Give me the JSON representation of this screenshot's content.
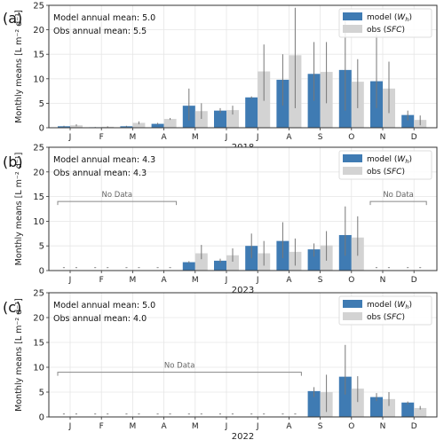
{
  "chart_data": [
    {
      "type": "bar",
      "panel_label": "(a)",
      "categories": [
        "J",
        "F",
        "M",
        "A",
        "M",
        "J",
        "J",
        "A",
        "S",
        "O",
        "N",
        "D"
      ],
      "xlabel": "2018",
      "ylabel": "Monthly means [L m⁻² d⁻¹]",
      "ylim": [
        0,
        25
      ],
      "yticks": [
        0,
        5,
        10,
        15,
        20,
        25
      ],
      "grid": true,
      "legend_position": "top-right",
      "annotations": [
        "Model annual mean: 5.0",
        "Obs annual mean:   5.5"
      ],
      "no_data_spans": [],
      "series": [
        {
          "name": "model (W_h)",
          "name_base": "model (",
          "name_sym": "W",
          "name_sub": "h",
          "name_tail": ")",
          "color": "#3f7bb3",
          "values": [
            0.3,
            0.1,
            0.3,
            0.8,
            4.5,
            3.5,
            6.2,
            9.8,
            11.0,
            11.8,
            9.5,
            2.6
          ],
          "err_low": [
            0.2,
            0.05,
            0.2,
            0.6,
            1.5,
            3.0,
            6.0,
            4.5,
            5.5,
            3.5,
            4.0,
            1.5
          ],
          "err_high": [
            0.4,
            0.15,
            0.4,
            1.0,
            8.0,
            4.0,
            6.4,
            15.0,
            17.5,
            22.5,
            19.0,
            3.5
          ]
        },
        {
          "name": "obs (SFC)",
          "name_base": "obs (",
          "name_sym": "SFC",
          "name_sub": "",
          "name_tail": ")",
          "color": "#d3d3d3",
          "values": [
            0.5,
            0.2,
            1.0,
            1.8,
            3.4,
            3.6,
            11.5,
            14.8,
            11.4,
            9.4,
            8.0,
            1.6
          ],
          "err_low": [
            0.3,
            0.1,
            0.7,
            1.6,
            1.8,
            2.7,
            5.5,
            4.0,
            5.0,
            4.0,
            3.0,
            0.5
          ],
          "err_high": [
            0.7,
            0.3,
            1.3,
            2.0,
            5.0,
            4.5,
            17.0,
            24.5,
            17.5,
            14.0,
            13.5,
            2.5
          ]
        }
      ]
    },
    {
      "type": "bar",
      "panel_label": "(b)",
      "categories": [
        "J",
        "F",
        "M",
        "A",
        "M",
        "J",
        "J",
        "A",
        "S",
        "O",
        "N",
        "D"
      ],
      "xlabel": "2023",
      "ylabel": "Monthly means [L m⁻² d⁻¹]",
      "ylim": [
        0,
        25
      ],
      "yticks": [
        0,
        5,
        10,
        15,
        20,
        25
      ],
      "grid": true,
      "legend_position": "top-right",
      "annotations": [
        "Model annual mean: 4.3",
        "Obs annual mean:   4.3"
      ],
      "no_data_spans": [
        {
          "label": "No Data",
          "from": 0,
          "to": 3,
          "y": 14
        },
        {
          "label": "No Data",
          "from": 10,
          "to": 11,
          "y": 14
        }
      ],
      "series": [
        {
          "name": "model (W_h)",
          "name_base": "model (",
          "name_sym": "W",
          "name_sub": "h",
          "name_tail": ")",
          "color": "#3f7bb3",
          "values": [
            null,
            null,
            null,
            null,
            1.7,
            2.0,
            5.0,
            6.0,
            4.3,
            7.2,
            null,
            null
          ],
          "err_low": [
            null,
            null,
            null,
            null,
            1.5,
            1.6,
            2.5,
            2.5,
            2.8,
            3.0,
            null,
            null
          ],
          "err_high": [
            null,
            null,
            null,
            null,
            1.9,
            2.4,
            7.5,
            9.8,
            5.5,
            13.0,
            null,
            null
          ]
        },
        {
          "name": "obs (SFC)",
          "name_base": "obs (",
          "name_sym": "SFC",
          "name_sub": "",
          "name_tail": ")",
          "color": "#d3d3d3",
          "values": [
            null,
            null,
            null,
            null,
            3.5,
            3.1,
            3.5,
            3.8,
            5.1,
            6.7,
            null,
            null
          ],
          "err_low": [
            null,
            null,
            null,
            null,
            2.3,
            1.8,
            1.0,
            1.0,
            2.0,
            3.0,
            null,
            null
          ],
          "err_high": [
            null,
            null,
            null,
            null,
            5.2,
            4.5,
            6.0,
            6.5,
            8.0,
            11.0,
            null,
            null
          ]
        }
      ]
    },
    {
      "type": "bar",
      "panel_label": "(c)",
      "categories": [
        "J",
        "F",
        "M",
        "A",
        "M",
        "J",
        "J",
        "A",
        "S",
        "O",
        "N",
        "D"
      ],
      "xlabel": "2022",
      "ylabel": "Monthly means [L m⁻² d⁻¹]",
      "ylim": [
        0,
        25
      ],
      "yticks": [
        0,
        5,
        10,
        15,
        20,
        25
      ],
      "grid": true,
      "legend_position": "top-right",
      "annotations": [
        "Model annual mean: 5.0",
        "Obs annual mean:    4.0"
      ],
      "no_data_spans": [
        {
          "label": "No Data",
          "from": 0,
          "to": 7,
          "y": 9
        }
      ],
      "series": [
        {
          "name": "model (W_h)",
          "name_base": "model (",
          "name_sym": "W",
          "name_sub": "h",
          "name_tail": ")",
          "color": "#3f7bb3",
          "values": [
            null,
            null,
            null,
            null,
            null,
            null,
            null,
            null,
            5.2,
            8.1,
            4.0,
            2.9
          ],
          "err_low": [
            null,
            null,
            null,
            null,
            null,
            null,
            null,
            null,
            4.0,
            4.5,
            3.2,
            2.5
          ],
          "err_high": [
            null,
            null,
            null,
            null,
            null,
            null,
            null,
            null,
            6.0,
            14.5,
            4.8,
            3.1
          ]
        },
        {
          "name": "obs (SFC)",
          "name_base": "obs (",
          "name_sym": "SFC",
          "name_sub": "",
          "name_tail": ")",
          "color": "#d3d3d3",
          "values": [
            null,
            null,
            null,
            null,
            null,
            null,
            null,
            null,
            5.0,
            5.7,
            3.6,
            1.8
          ],
          "err_low": [
            null,
            null,
            null,
            null,
            null,
            null,
            null,
            null,
            1.0,
            3.0,
            2.2,
            1.5
          ],
          "err_high": [
            null,
            null,
            null,
            null,
            null,
            null,
            null,
            null,
            8.5,
            8.2,
            5.0,
            2.2
          ]
        }
      ]
    }
  ]
}
